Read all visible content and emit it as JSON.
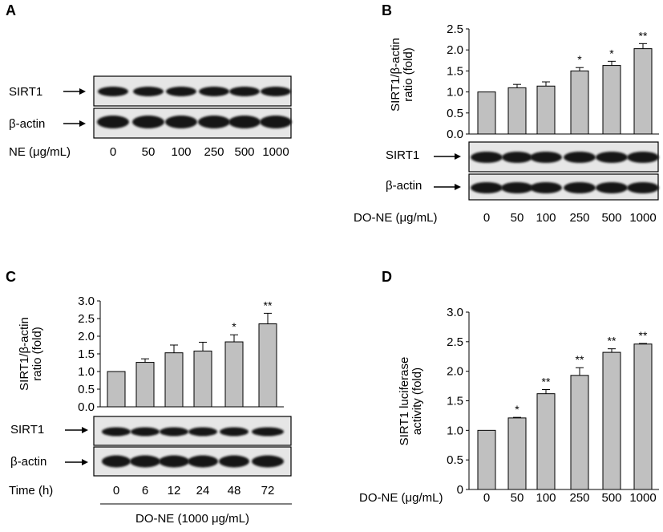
{
  "panels": {
    "A": {
      "letter": "A",
      "blot_labels": [
        "SIRT1",
        "β-actin"
      ],
      "row_label": "NE (μg/mL)",
      "lanes": [
        "0",
        "50",
        "100",
        "250",
        "500",
        "1000"
      ]
    },
    "B": {
      "letter": "B",
      "blot_labels": [
        "SIRT1",
        "β-actin"
      ],
      "row_label": "DO-NE (μg/mL)",
      "lanes": [
        "0",
        "50",
        "100",
        "250",
        "500",
        "1000"
      ]
    },
    "C": {
      "letter": "C",
      "blot_labels": [
        "SIRT1",
        "β-actin"
      ],
      "row_label": "Time (h)",
      "lanes": [
        "0",
        "6",
        "12",
        "24",
        "48",
        "72"
      ],
      "group_label": "DO-NE (1000 μg/mL)"
    },
    "D": {
      "letter": "D",
      "row_label": "DO-NE (μg/mL)",
      "lanes": [
        "0",
        "50",
        "100",
        "250",
        "500",
        "1000"
      ]
    }
  },
  "colors": {
    "bar": "#c0c0c0",
    "stroke": "#000000",
    "band": "#141414",
    "blot_bg": "#e6e6e6"
  },
  "chart_data": [
    {
      "panel": "B",
      "type": "bar",
      "categories": [
        "0",
        "50",
        "100",
        "250",
        "500",
        "1000"
      ],
      "values": [
        1.0,
        1.1,
        1.14,
        1.5,
        1.63,
        2.03
      ],
      "errors": [
        0.0,
        0.08,
        0.1,
        0.08,
        0.1,
        0.12
      ],
      "annotations": [
        "",
        "",
        "",
        "*",
        "*",
        "**"
      ],
      "ylabel": "SIRT1/β-actin ratio (fold)",
      "ylabel_lines": [
        "SIRT1/β-actin",
        "ratio (fold)"
      ],
      "ylim": [
        0,
        2.5
      ],
      "yticks": [
        "0.0",
        "0.5",
        "1.0",
        "1.5",
        "2.0",
        "2.5"
      ]
    },
    {
      "panel": "C",
      "type": "bar",
      "categories": [
        "0",
        "6",
        "12",
        "24",
        "48",
        "72"
      ],
      "values": [
        1.0,
        1.26,
        1.53,
        1.58,
        1.84,
        2.35
      ],
      "errors": [
        0.0,
        0.1,
        0.22,
        0.25,
        0.2,
        0.3
      ],
      "annotations": [
        "",
        "",
        "",
        "",
        "*",
        "**"
      ],
      "ylabel": "SIRT1/β-actin ratio (fold)",
      "ylabel_lines": [
        "SIRT1/β-actin",
        "ratio (fold)"
      ],
      "ylim": [
        0,
        3.0
      ],
      "yticks": [
        "0.0",
        "0.5",
        "1.0",
        "1.5",
        "2.0",
        "2.5",
        "3.0"
      ]
    },
    {
      "panel": "D",
      "type": "bar",
      "categories": [
        "0",
        "50",
        "100",
        "250",
        "500",
        "1000"
      ],
      "values": [
        1.0,
        1.21,
        1.62,
        1.93,
        2.32,
        2.46
      ],
      "errors": [
        0.0,
        0.01,
        0.07,
        0.13,
        0.06,
        0.01
      ],
      "annotations": [
        "",
        "*",
        "**",
        "**",
        "**",
        "**"
      ],
      "ylabel": "SIRT1 luciferase activity (fold)",
      "ylabel_lines": [
        "SIRT1  luciferase",
        "activity (fold)"
      ],
      "ylim": [
        0,
        3.0
      ],
      "yticks": [
        "0",
        "0.5",
        "1.0",
        "1.5",
        "2.0",
        "2.5",
        "3.0"
      ]
    }
  ]
}
